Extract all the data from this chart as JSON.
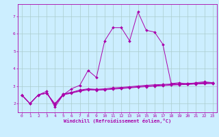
{
  "xlabel": "Windchill (Refroidissement éolien,°C)",
  "background_color": "#cceeff",
  "line_color": "#aa00aa",
  "grid_color": "#aacccc",
  "xlim": [
    -0.5,
    23.5
  ],
  "ylim": [
    1.5,
    7.7
  ],
  "yticks": [
    2,
    3,
    4,
    5,
    6,
    7
  ],
  "xticks": [
    0,
    1,
    2,
    3,
    4,
    5,
    6,
    7,
    8,
    9,
    10,
    11,
    12,
    13,
    14,
    15,
    16,
    17,
    18,
    19,
    20,
    21,
    22,
    23
  ],
  "series": [
    [
      2.5,
      2.0,
      2.5,
      2.7,
      1.8,
      2.5,
      2.85,
      3.05,
      3.9,
      3.5,
      5.6,
      6.35,
      6.35,
      5.6,
      7.25,
      6.2,
      6.1,
      5.4,
      3.15,
      3.2,
      3.1,
      3.2,
      3.25,
      3.2
    ],
    [
      2.5,
      2.0,
      2.5,
      2.6,
      2.0,
      2.55,
      2.65,
      2.78,
      2.85,
      2.82,
      2.85,
      2.9,
      2.93,
      2.97,
      3.01,
      3.05,
      3.08,
      3.1,
      3.12,
      3.14,
      3.16,
      3.18,
      3.2,
      3.2
    ],
    [
      2.5,
      2.0,
      2.5,
      2.6,
      1.95,
      2.52,
      2.62,
      2.74,
      2.82,
      2.79,
      2.81,
      2.86,
      2.89,
      2.93,
      2.97,
      3.01,
      3.04,
      3.06,
      3.09,
      3.11,
      3.13,
      3.15,
      3.17,
      3.18
    ],
    [
      2.5,
      2.0,
      2.5,
      2.6,
      1.93,
      2.5,
      2.6,
      2.71,
      2.79,
      2.77,
      2.79,
      2.83,
      2.86,
      2.9,
      2.94,
      2.97,
      3.0,
      3.03,
      3.06,
      3.08,
      3.1,
      3.12,
      3.14,
      3.15
    ]
  ]
}
